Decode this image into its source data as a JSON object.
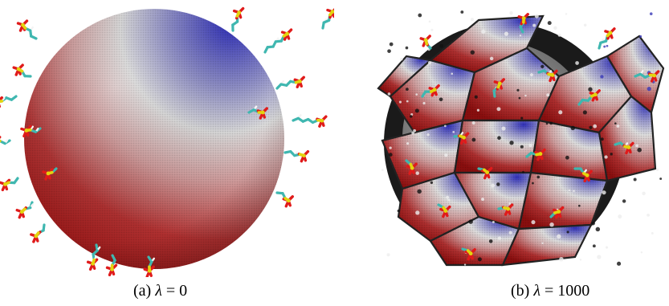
{
  "panels": [
    {
      "label": "(a)",
      "symbol": "λ",
      "equals": "=",
      "value": "0"
    },
    {
      "label": "(b)",
      "symbol": "λ",
      "equals": "=",
      "value": "1000"
    }
  ],
  "colors": {
    "sphere_red": "#a31212",
    "sphere_white": "#e6e6e6",
    "sphere_blue": "#2727b5",
    "carbon_cyan": "#3fb7b0",
    "oxygen_red": "#e01b1b",
    "sulfur_yellow": "#e3d40e",
    "hydrogen_white": "#f4f4f4"
  }
}
